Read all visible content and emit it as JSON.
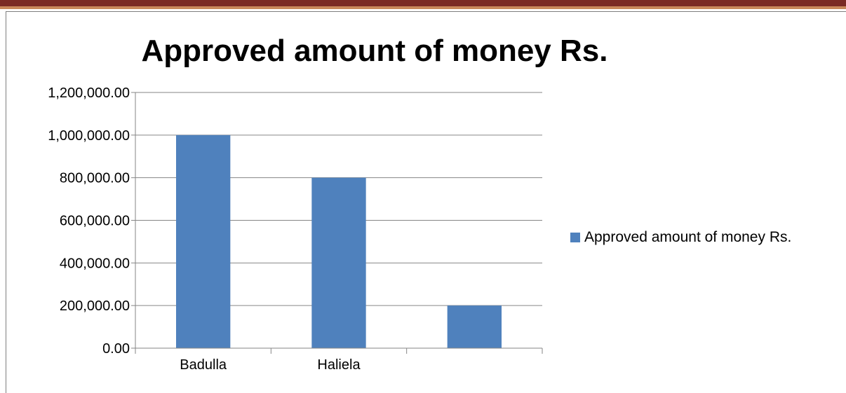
{
  "chart_data": {
    "type": "bar",
    "title": "Approved amount of money Rs.",
    "categories": [
      "Badulla",
      "Haliela",
      ""
    ],
    "series": [
      {
        "name": "Approved amount of money Rs.",
        "values": [
          1000000,
          800000,
          200000
        ],
        "color": "#4f81bd"
      }
    ],
    "y_tick_labels": [
      "0.00",
      "200,000.00",
      "400,000.00",
      "600,000.00",
      "800,000.00",
      "1,000,000.00",
      "1,200,000.00"
    ],
    "ylim": [
      0,
      1200000
    ],
    "grid": true,
    "legend": "right",
    "xlabel": "",
    "ylabel": ""
  }
}
